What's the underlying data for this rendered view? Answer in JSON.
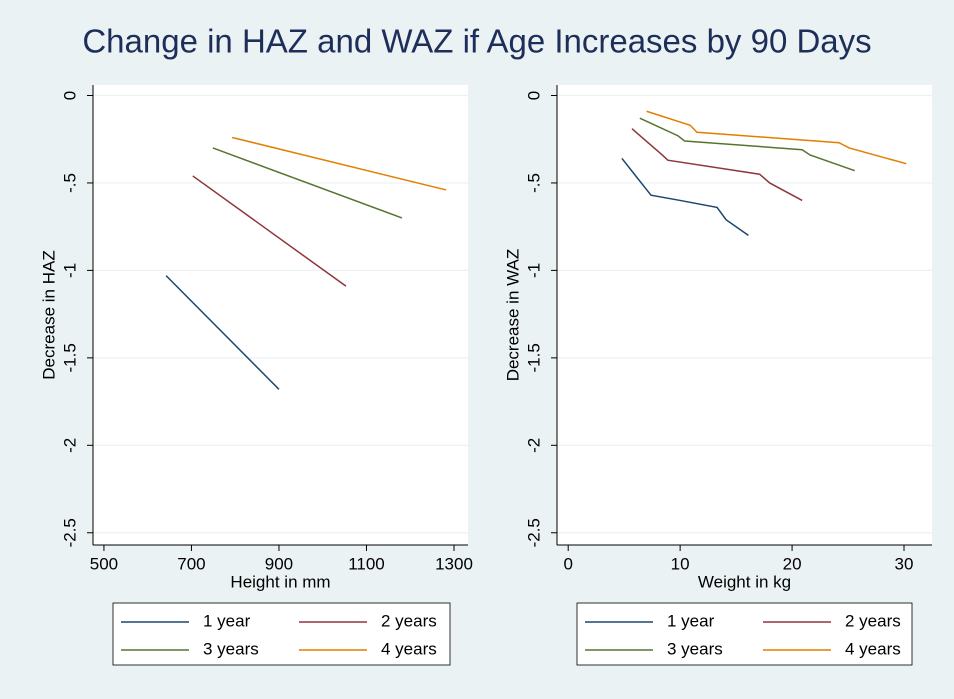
{
  "title": "Change in HAZ and WAZ if Age Increases by 90 Days",
  "chart_data": [
    {
      "type": "line",
      "x_label": "Height in mm",
      "y_label": "Decrease in HAZ",
      "xlim": [
        475,
        1332
      ],
      "ylim": [
        -2.57,
        0.06
      ],
      "xticks": [
        500,
        700,
        900,
        1100,
        1300
      ],
      "yticks": [
        0,
        {
          "value": -0.5,
          "label": "-.5"
        },
        -1,
        {
          "value": -1.5,
          "label": "-1.5"
        },
        -2,
        {
          "value": -2.5,
          "label": "-2.5"
        }
      ],
      "grid": true,
      "series": [
        {
          "name": "1 year",
          "color": "#1a476f",
          "x": [
            642,
            900
          ],
          "values": [
            -1.03,
            -1.68
          ]
        },
        {
          "name": "2 years",
          "color": "#90353b",
          "x": [
            703,
            1053
          ],
          "values": [
            -0.46,
            -1.09
          ]
        },
        {
          "name": "3 years",
          "color": "#55752f",
          "x": [
            749,
            1181
          ],
          "values": [
            -0.3,
            -0.7
          ]
        },
        {
          "name": "4 years",
          "color": "#e37e00",
          "x": [
            793,
            1282
          ],
          "values": [
            -0.24,
            -0.54
          ]
        }
      ]
    },
    {
      "type": "line",
      "x_label": "Weight in kg",
      "y_label": "Decrease in WAZ",
      "xlim": [
        -1,
        32.5
      ],
      "ylim": [
        -2.57,
        0.06
      ],
      "xticks": [
        0,
        10,
        20,
        30
      ],
      "yticks": [
        0,
        {
          "value": -0.5,
          "label": "-.5"
        },
        -1,
        {
          "value": -1.5,
          "label": "-1.5"
        },
        -2,
        {
          "value": -2.5,
          "label": "-2.5"
        }
      ],
      "grid": true,
      "series": [
        {
          "name": "1 year",
          "color": "#1a476f",
          "x": [
            4.8,
            6.9,
            7.4,
            10,
            13.3,
            14.1,
            16.1
          ],
          "values": [
            -0.36,
            -0.53,
            -0.57,
            -0.6,
            -0.64,
            -0.71,
            -0.8
          ]
        },
        {
          "name": "2 years",
          "color": "#90353b",
          "x": [
            5.7,
            8.4,
            8.9,
            17.1,
            18.0,
            20.9
          ],
          "values": [
            -0.19,
            -0.34,
            -0.37,
            -0.45,
            -0.5,
            -0.6
          ]
        },
        {
          "name": "3 years",
          "color": "#55752f",
          "x": [
            6.4,
            9.8,
            10.4,
            20.9,
            21.6,
            25.6
          ],
          "values": [
            -0.13,
            -0.23,
            -0.26,
            -0.31,
            -0.34,
            -0.43
          ]
        },
        {
          "name": "4 years",
          "color": "#e37e00",
          "x": [
            7.0,
            10.9,
            11.5,
            24.2,
            25.1,
            30.2
          ],
          "values": [
            -0.09,
            -0.17,
            -0.21,
            -0.27,
            -0.3,
            -0.39
          ]
        }
      ]
    }
  ]
}
